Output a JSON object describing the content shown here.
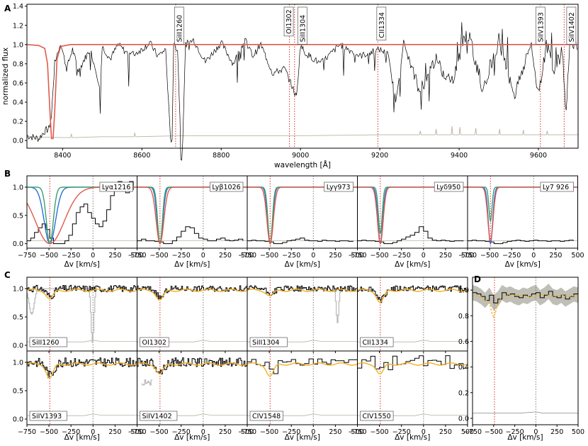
{
  "chart_data": [
    {
      "panel": "A",
      "type": "line",
      "xlabel": "wavelength [Å]",
      "ylabel": "normalized flux",
      "xlim": [
        8310,
        9700
      ],
      "ylim": [
        -0.08,
        1.42
      ],
      "xticks": [
        "8400",
        "8600",
        "8800",
        "9000",
        "9200",
        "9400",
        "9600"
      ],
      "yticks": [
        "0.0",
        "0.2",
        "0.4",
        "0.6",
        "0.8",
        "1.0",
        "1.2",
        "1.4"
      ],
      "xtick_values": [
        8400,
        8600,
        8800,
        9000,
        9200,
        9400,
        9600
      ],
      "ytick_values": [
        0,
        0.2,
        0.4,
        0.6,
        0.8,
        1.0,
        1.2,
        1.4
      ],
      "series": [
        {
          "role": "flux",
          "color": "#000000",
          "x": [
            8310,
            8340,
            8355,
            8365,
            8372,
            8376,
            8380,
            8386,
            8395,
            8410,
            8425,
            8440,
            8455,
            8470,
            8495,
            8500,
            8520,
            8540,
            8560,
            8580,
            8600,
            8620,
            8640,
            8660,
            8672,
            8676,
            8680,
            8690,
            8698,
            8703,
            8710,
            8730,
            8760,
            8800,
            8830,
            8860,
            8880,
            8900,
            8930,
            8960,
            8990,
            9000,
            9010,
            9050,
            9100,
            9150,
            9200,
            9220,
            9240,
            9260,
            9300,
            9340,
            9380,
            9420,
            9460,
            9500,
            9540,
            9580,
            9600,
            9620,
            9640,
            9660,
            9670,
            9680,
            9700
          ],
          "y": [
            0.05,
            0.02,
            0.1,
            0.12,
            0.25,
            0.55,
            0.8,
            0.9,
            1.02,
            0.75,
            0.95,
            0.72,
            0.85,
            0.95,
            0.55,
            0.98,
            0.85,
            1.0,
            0.92,
            0.9,
            0.95,
            1.02,
            0.88,
            0.95,
            0.0,
            0.02,
            1.0,
            0.95,
            0.0,
            0.03,
            1.0,
            1.05,
            0.82,
            1.02,
            0.8,
            1.05,
            0.88,
            1.0,
            0.7,
            0.75,
            0.45,
            1.0,
            0.92,
            0.8,
            1.0,
            0.88,
            0.95,
            0.9,
            0.42,
            1.02,
            0.5,
            0.85,
            0.6,
            1.15,
            0.55,
            1.05,
            0.48,
            1.0,
            0.5,
            1.0,
            0.75,
            0.92,
            0.3,
            1.05,
            1.0
          ]
        },
        {
          "role": "model",
          "color": "#e05a4e",
          "x": [
            8310,
            8340,
            8355,
            8362,
            8368,
            8372,
            8376,
            8380,
            8386,
            8395,
            8420,
            9700
          ],
          "y": [
            1.0,
            0.99,
            0.96,
            0.8,
            0.3,
            0.02,
            0.02,
            0.3,
            0.85,
            0.98,
            1.0,
            1.0
          ]
        },
        {
          "role": "error",
          "color": "#bbb3a3",
          "x": [
            8310,
            8400,
            8420,
            8422,
            8424,
            8500,
            8560,
            8580,
            8582,
            8584,
            8700,
            8900,
            9000,
            9200,
            9290,
            9300,
            9302,
            9304,
            9340,
            9342,
            9344,
            9380,
            9382,
            9384,
            9400,
            9402,
            9404,
            9440,
            9442,
            9444,
            9500,
            9502,
            9504,
            9560,
            9562,
            9564,
            9620,
            9622,
            9624,
            9700
          ],
          "y": [
            0.04,
            0.03,
            0.03,
            0.07,
            0.03,
            0.04,
            0.04,
            0.04,
            0.08,
            0.04,
            0.05,
            0.05,
            0.05,
            0.06,
            0.06,
            0.06,
            0.1,
            0.06,
            0.06,
            0.12,
            0.06,
            0.06,
            0.15,
            0.06,
            0.06,
            0.14,
            0.06,
            0.06,
            0.13,
            0.06,
            0.06,
            0.12,
            0.06,
            0.06,
            0.11,
            0.06,
            0.06,
            0.1,
            0.06,
            0.06
          ]
        }
      ],
      "annotations": [
        {
          "text": "SiII1260",
          "x": 8685
        },
        {
          "text": "OI1302",
          "x": 8972
        },
        {
          "text": "SiII1304",
          "x": 8985
        },
        {
          "text": "CII1334",
          "x": 9195
        },
        {
          "text": "SiIV1393",
          "x": 9605
        },
        {
          "text": "SiIV1402",
          "x": 9665
        }
      ]
    },
    {
      "panel": "B",
      "type": "line",
      "xlabel": "Δv [km/s]",
      "xlim": [
        -750,
        500
      ],
      "ylim": [
        -0.08,
        1.2
      ],
      "xticks": [
        "−750",
        "−500",
        "−250",
        "0",
        "250",
        "500"
      ],
      "xtick_values": [
        -750,
        -500,
        -250,
        0,
        250,
        500
      ],
      "yticks": [
        "0.0",
        "0.5",
        "1.0"
      ],
      "ytick_values": [
        0,
        0.5,
        1.0
      ],
      "marker_red": -490,
      "marker_gray": 0,
      "model_colors": [
        "#2e6fd6",
        "#38a070",
        "#e05a4e"
      ],
      "subpanels": [
        {
          "label": "Lyα1216",
          "widths": [
            90,
            55,
            230
          ],
          "depths": [
            1,
            1,
            1
          ],
          "flux": [
            0.05,
            0.1,
            0.2,
            0.28,
            0.35,
            0.25,
            0.1,
            0,
            0,
            0,
            0.05,
            0.15,
            0.35,
            0.55,
            0.65,
            0.7,
            0.55,
            0.45,
            0.35,
            0.3,
            0.4,
            0.6,
            0.85,
            1.0,
            1.1,
            1.05,
            0.9,
            1.1,
            0.95
          ]
        },
        {
          "label": "Lyβ1026",
          "widths": [
            45,
            38,
            60
          ],
          "depths": [
            1,
            1,
            1
          ],
          "flux": [
            0.05,
            0.08,
            0.05,
            0.05,
            0.04,
            0.03,
            0,
            0,
            0.05,
            0.12,
            0.22,
            0.3,
            0.28,
            0.18,
            0.1,
            0.08,
            0.05,
            0.05,
            0.08,
            0.1,
            0.06,
            0.05,
            0.06,
            0.08,
            0.05
          ]
        },
        {
          "label": "Lyγ973",
          "widths": [
            40,
            35,
            50
          ],
          "depths": [
            1,
            1,
            1
          ],
          "flux": [
            0.05,
            0.06,
            0.05,
            0.05,
            0.04,
            0.03,
            0,
            0,
            0.02,
            0.05,
            0.06,
            0.08,
            0.1,
            0.06,
            0.05,
            0.05,
            0.04,
            0.06,
            0.05,
            0.05,
            0.04,
            0.05,
            0.05,
            0.04,
            0.05
          ]
        },
        {
          "label": "Lyδ950",
          "widths": [
            38,
            30,
            45
          ],
          "depths": [
            1,
            0.82,
            1
          ],
          "flux": [
            0.05,
            0.06,
            0.05,
            0.05,
            0.04,
            0.03,
            0,
            0,
            0.02,
            0.05,
            0.08,
            0.12,
            0.15,
            0.2,
            0.3,
            0.22,
            0.1,
            0.06,
            0.05,
            0.06,
            0.05,
            0.04,
            0.05,
            0.05,
            0.04
          ]
        },
        {
          "label": "Ly7 926",
          "widths": [
            35,
            25,
            42
          ],
          "depths": [
            1,
            0.6,
            0.95
          ],
          "flux": [
            0.05,
            0.06,
            0.05,
            0.05,
            0.04,
            0.03,
            0,
            0,
            0.02,
            0.04,
            0.05,
            0.06,
            0.05,
            0.04,
            0.05,
            0.06,
            0.05,
            0.05,
            0.04,
            0.05,
            0.05,
            0.04,
            0.05,
            0.06,
            0.05
          ]
        }
      ]
    },
    {
      "panel": "C",
      "type": "line",
      "xlabel": "Δv [km/s]",
      "xlim": [
        -750,
        500
      ],
      "ylim": [
        -0.1,
        1.2
      ],
      "xticks": [
        "−750",
        "−500",
        "−250",
        "0",
        "250",
        "500"
      ],
      "xtick_values": [
        -750,
        -500,
        -250,
        0,
        250,
        500
      ],
      "yticks": [
        "0.0",
        "0.5",
        "1.0"
      ],
      "ytick_values": [
        0,
        0.5,
        1.0
      ],
      "model_color": "#f2b01e",
      "marker_red": -490,
      "marker_gray": 0,
      "subpanels": [
        {
          "label": "SiII1260",
          "row": 0,
          "col": 0,
          "step": 12,
          "noise": 0.06,
          "model_depth": 0.15,
          "gray_x": [
            -720,
            -640,
            -600,
            -560
          ],
          "gray_from": -700,
          "gray_to": -540,
          "gray_dip": true,
          "gray2_from": -40,
          "gray2_to": 50
        },
        {
          "label": "OI1302",
          "row": 0,
          "col": 1,
          "step": 12,
          "noise": 0.05,
          "model_depth": 0.18
        },
        {
          "label": "SiII1304",
          "row": 0,
          "col": 2,
          "step": 12,
          "noise": 0.05,
          "model_depth": 0.1,
          "gray2_from": 230,
          "gray2_to": 310
        },
        {
          "label": "CII1334",
          "row": 0,
          "col": 3,
          "step": 12,
          "noise": 0.05,
          "model_depth": 0.22
        },
        {
          "label": "SiIV1393",
          "row": 1,
          "col": 0,
          "step": 12,
          "noise": 0.08,
          "model_depth": 0.25
        },
        {
          "label": "SiIV1402",
          "row": 1,
          "col": 1,
          "step": 12,
          "noise": 0.08,
          "model_depth": 0.18,
          "gray3_from": -700,
          "gray3_to": -580
        },
        {
          "label": "CIV1548",
          "row": 1,
          "col": 2,
          "step": 50,
          "noise": 0.08,
          "model_depth": 0.22
        },
        {
          "label": "CIV1550",
          "row": 1,
          "col": 3,
          "step": 50,
          "noise": 0.12,
          "model_depth": 0.18
        }
      ]
    },
    {
      "panel": "D",
      "type": "area",
      "xlabel": "Δv [km/s]",
      "xlim": [
        -750,
        500
      ],
      "ylim": [
        -0.05,
        1.1
      ],
      "xticks": [
        "−750",
        "−500",
        "−250",
        "0",
        "250",
        "500"
      ],
      "xtick_values": [
        -750,
        -500,
        -250,
        0,
        250,
        500
      ],
      "yticks": [
        "0.0",
        "0.2",
        "0.4",
        "0.6",
        "0.8",
        "1.0"
      ],
      "ytick_values": [
        0,
        0.2,
        0.4,
        0.6,
        0.8,
        1.0
      ],
      "stack_x": [
        -750,
        -700,
        -650,
        -600,
        -550,
        -500,
        -450,
        -400,
        -350,
        -300,
        -250,
        -200,
        -150,
        -100,
        -50,
        0,
        50,
        100,
        150,
        200,
        250,
        300,
        350,
        400,
        450,
        500
      ],
      "stack_y": [
        0.98,
        0.97,
        0.95,
        0.92,
        0.96,
        0.9,
        0.93,
        0.98,
        0.96,
        0.97,
        0.95,
        0.94,
        0.96,
        0.95,
        0.97,
        0.98,
        0.94,
        0.96,
        0.99,
        0.95,
        0.94,
        0.96,
        0.93,
        0.95,
        0.97,
        0.96
      ],
      "band": 0.06,
      "model_color": "#f2b01e",
      "model_x": [
        -750,
        -650,
        -550,
        -520,
        -500,
        -480,
        -450,
        -400,
        -300,
        -200,
        -100,
        0,
        100,
        200,
        300,
        400,
        500
      ],
      "model_y": [
        0.96,
        0.95,
        0.9,
        0.82,
        0.79,
        0.82,
        0.9,
        0.95,
        0.96,
        0.96,
        0.95,
        0.95,
        0.97,
        0.95,
        0.96,
        0.95,
        0.96
      ],
      "error_y": 0.04,
      "marker_red": -490,
      "marker_gray": 0
    }
  ]
}
